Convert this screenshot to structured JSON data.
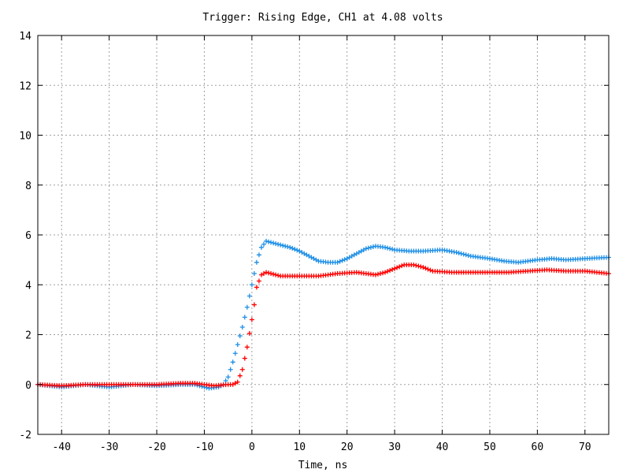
{
  "chart_data": {
    "type": "scatter",
    "title": "Trigger: Rising Edge, CH1 at 4.08 volts",
    "xlabel": "Time, ns",
    "ylabel": "",
    "xlim": [
      -45,
      75
    ],
    "ylim": [
      -2,
      14
    ],
    "x_ticks": [
      -40,
      -30,
      -20,
      -10,
      0,
      10,
      20,
      30,
      40,
      50,
      60,
      70
    ],
    "y_ticks": [
      -2,
      0,
      2,
      4,
      6,
      8,
      10,
      12,
      14
    ],
    "grid": true,
    "marker": "plus",
    "series": [
      {
        "color": "#1e8fe6",
        "points": [
          [
            -45,
            0.0
          ],
          [
            -40,
            -0.1
          ],
          [
            -35,
            0.0
          ],
          [
            -30,
            -0.1
          ],
          [
            -25,
            0.0
          ],
          [
            -20,
            -0.05
          ],
          [
            -15,
            0.0
          ],
          [
            -12,
            0.0
          ],
          [
            -9,
            -0.15
          ],
          [
            -7,
            -0.1
          ],
          [
            -6,
            0.0
          ],
          [
            -5,
            0.3
          ],
          [
            -4,
            0.9
          ],
          [
            -3,
            1.6
          ],
          [
            -2,
            2.3
          ],
          [
            -1,
            3.1
          ],
          [
            0,
            4.0
          ],
          [
            1,
            4.9
          ],
          [
            2,
            5.5
          ],
          [
            3,
            5.75
          ],
          [
            4,
            5.7
          ],
          [
            6,
            5.6
          ],
          [
            8,
            5.5
          ],
          [
            10,
            5.35
          ],
          [
            12,
            5.15
          ],
          [
            14,
            4.95
          ],
          [
            16,
            4.9
          ],
          [
            18,
            4.9
          ],
          [
            20,
            5.05
          ],
          [
            22,
            5.25
          ],
          [
            24,
            5.45
          ],
          [
            26,
            5.55
          ],
          [
            28,
            5.5
          ],
          [
            30,
            5.4
          ],
          [
            33,
            5.35
          ],
          [
            36,
            5.35
          ],
          [
            40,
            5.4
          ],
          [
            43,
            5.3
          ],
          [
            46,
            5.15
          ],
          [
            50,
            5.05
          ],
          [
            53,
            4.95
          ],
          [
            56,
            4.9
          ],
          [
            60,
            5.0
          ],
          [
            63,
            5.05
          ],
          [
            66,
            5.0
          ],
          [
            70,
            5.05
          ],
          [
            75,
            5.1
          ]
        ]
      },
      {
        "color": "#ff0000",
        "points": [
          [
            -45,
            0.0
          ],
          [
            -40,
            -0.05
          ],
          [
            -35,
            0.0
          ],
          [
            -30,
            0.0
          ],
          [
            -25,
            0.0
          ],
          [
            -20,
            0.0
          ],
          [
            -15,
            0.05
          ],
          [
            -12,
            0.05
          ],
          [
            -10,
            0.0
          ],
          [
            -8,
            -0.05
          ],
          [
            -5,
            0.0
          ],
          [
            -4,
            0.0
          ],
          [
            -3,
            0.1
          ],
          [
            -2,
            0.6
          ],
          [
            -1,
            1.5
          ],
          [
            0,
            2.6
          ],
          [
            0.5,
            3.2
          ],
          [
            1,
            3.9
          ],
          [
            2,
            4.4
          ],
          [
            3,
            4.5
          ],
          [
            4,
            4.45
          ],
          [
            6,
            4.35
          ],
          [
            10,
            4.35
          ],
          [
            14,
            4.35
          ],
          [
            18,
            4.45
          ],
          [
            22,
            4.5
          ],
          [
            26,
            4.4
          ],
          [
            28,
            4.5
          ],
          [
            30,
            4.65
          ],
          [
            32,
            4.8
          ],
          [
            34,
            4.8
          ],
          [
            36,
            4.7
          ],
          [
            38,
            4.55
          ],
          [
            42,
            4.5
          ],
          [
            46,
            4.5
          ],
          [
            50,
            4.5
          ],
          [
            54,
            4.5
          ],
          [
            58,
            4.55
          ],
          [
            62,
            4.6
          ],
          [
            66,
            4.55
          ],
          [
            70,
            4.55
          ],
          [
            75,
            4.45
          ]
        ]
      }
    ]
  }
}
